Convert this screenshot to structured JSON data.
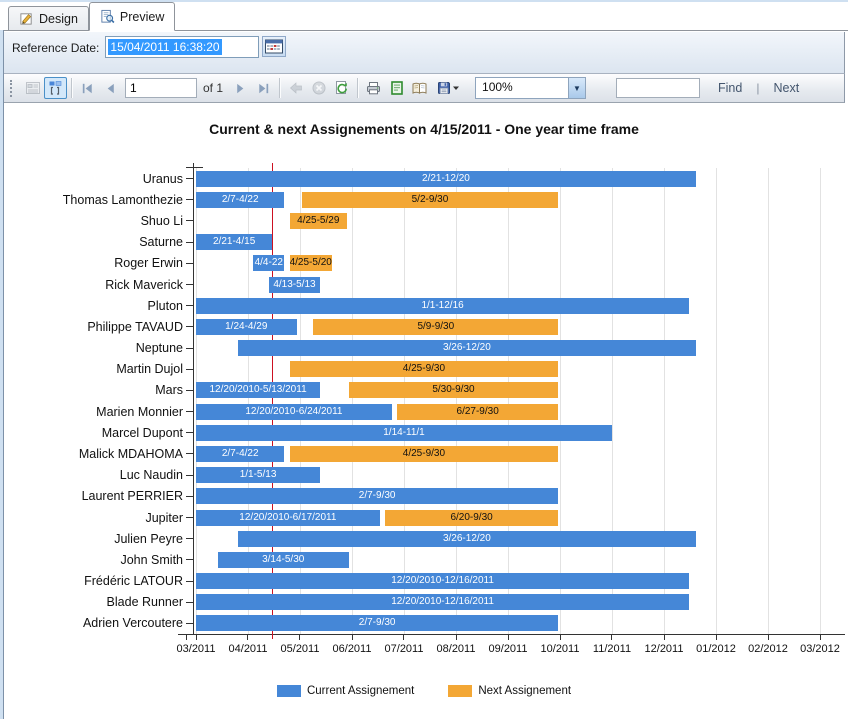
{
  "tabs": {
    "design": "Design",
    "preview": "Preview"
  },
  "reference_bar": {
    "label": "Reference Date:",
    "value": "15/04/2011 16:38:20"
  },
  "toolbar": {
    "page_value": "1",
    "of_label": "of 1",
    "zoom_value": "100%",
    "find_label": "Find",
    "separator": "|",
    "next_label": "Next"
  },
  "chart_data": {
    "type": "bar",
    "subtype": "gantt",
    "title": "Current & next Assignements on 4/15/2011 - One year time frame",
    "x_ticks": [
      "03/2011",
      "04/2011",
      "05/2011",
      "06/2011",
      "07/2011",
      "08/2011",
      "09/2011",
      "10/2011",
      "11/2011",
      "12/2011",
      "01/2012",
      "02/2012",
      "03/2012"
    ],
    "axis_start": "2011-03-01",
    "axis_end": "2012-03-01",
    "reference_line_date": "2011-04-15",
    "grid": true,
    "legend_position": "bottom",
    "legend": [
      {
        "label": "Current Assignement",
        "key": "current",
        "color": "#4587d7"
      },
      {
        "label": "Next Assignement",
        "key": "next",
        "color": "#f3a735"
      }
    ],
    "colors": {
      "current": "#4587d7",
      "next": "#f3a735",
      "reference_line": "#cc1122",
      "grid": "#e2e2e2",
      "current_text": "#ffffff",
      "next_text": "#111111"
    },
    "rows": [
      {
        "name": "Uranus",
        "bars": [
          {
            "type": "current",
            "start": "2011-02-21",
            "end": "2011-12-20",
            "label": "2/21-12/20"
          }
        ]
      },
      {
        "name": "Thomas Lamonthezie",
        "bars": [
          {
            "type": "current",
            "start": "2011-02-07",
            "end": "2011-04-22",
            "label": "2/7-4/22"
          },
          {
            "type": "next",
            "start": "2011-05-02",
            "end": "2011-09-30",
            "label": "5/2-9/30"
          }
        ]
      },
      {
        "name": "Shuo Li",
        "bars": [
          {
            "type": "next",
            "start": "2011-04-25",
            "end": "2011-05-29",
            "label": "4/25-5/29"
          }
        ]
      },
      {
        "name": "Saturne",
        "bars": [
          {
            "type": "current",
            "start": "2011-02-21",
            "end": "2011-04-15",
            "label": "2/21-4/15"
          }
        ]
      },
      {
        "name": "Roger Erwin",
        "bars": [
          {
            "type": "current",
            "start": "2011-04-04",
            "end": "2011-04-22",
            "label": "4/4-22"
          },
          {
            "type": "next",
            "start": "2011-04-25",
            "end": "2011-05-20",
            "label": "4/25-5/20"
          }
        ]
      },
      {
        "name": "Rick Maverick",
        "bars": [
          {
            "type": "current",
            "start": "2011-04-13",
            "end": "2011-05-13",
            "label": "4/13-5/13"
          }
        ]
      },
      {
        "name": "Pluton",
        "bars": [
          {
            "type": "current",
            "start": "2011-01-01",
            "end": "2011-12-16",
            "label": "1/1-12/16"
          }
        ]
      },
      {
        "name": "Philippe TAVAUD",
        "bars": [
          {
            "type": "current",
            "start": "2011-01-24",
            "end": "2011-04-29",
            "label": "1/24-4/29"
          },
          {
            "type": "next",
            "start": "2011-05-09",
            "end": "2011-09-30",
            "label": "5/9-9/30"
          }
        ]
      },
      {
        "name": "Neptune",
        "bars": [
          {
            "type": "current",
            "start": "2011-03-26",
            "end": "2011-12-20",
            "label": "3/26-12/20"
          }
        ]
      },
      {
        "name": "Martin Dujol",
        "bars": [
          {
            "type": "next",
            "start": "2011-04-25",
            "end": "2011-09-30",
            "label": "4/25-9/30"
          }
        ]
      },
      {
        "name": "Mars",
        "bars": [
          {
            "type": "current",
            "start": "2010-12-20",
            "end": "2011-05-13",
            "label": "12/20/2010-5/13/2011"
          },
          {
            "type": "next",
            "start": "2011-05-30",
            "end": "2011-09-30",
            "label": "5/30-9/30"
          }
        ]
      },
      {
        "name": "Marien Monnier",
        "bars": [
          {
            "type": "current",
            "start": "2010-12-20",
            "end": "2011-06-24",
            "label": "12/20/2010-6/24/2011"
          },
          {
            "type": "next",
            "start": "2011-06-27",
            "end": "2011-09-30",
            "label": "6/27-9/30"
          }
        ]
      },
      {
        "name": "Marcel Dupont",
        "bars": [
          {
            "type": "current",
            "start": "2011-01-14",
            "end": "2011-11-01",
            "label": "1/14-11/1"
          }
        ]
      },
      {
        "name": "Malick MDAHOMA",
        "bars": [
          {
            "type": "current",
            "start": "2011-02-07",
            "end": "2011-04-22",
            "label": "2/7-4/22"
          },
          {
            "type": "next",
            "start": "2011-04-25",
            "end": "2011-09-30",
            "label": "4/25-9/30"
          }
        ]
      },
      {
        "name": "Luc Naudin",
        "bars": [
          {
            "type": "current",
            "start": "2011-01-01",
            "end": "2011-05-13",
            "label": "1/1-5/13"
          }
        ]
      },
      {
        "name": "Laurent PERRIER",
        "bars": [
          {
            "type": "current",
            "start": "2011-02-07",
            "end": "2011-09-30",
            "label": "2/7-9/30"
          }
        ]
      },
      {
        "name": "Jupiter",
        "bars": [
          {
            "type": "current",
            "start": "2010-12-20",
            "end": "2011-06-17",
            "label": "12/20/2010-6/17/2011"
          },
          {
            "type": "next",
            "start": "2011-06-20",
            "end": "2011-09-30",
            "label": "6/20-9/30"
          }
        ]
      },
      {
        "name": "Julien Peyre",
        "bars": [
          {
            "type": "current",
            "start": "2011-03-26",
            "end": "2011-12-20",
            "label": "3/26-12/20"
          }
        ]
      },
      {
        "name": "John Smith",
        "bars": [
          {
            "type": "current",
            "start": "2011-03-14",
            "end": "2011-05-30",
            "label": "3/14-5/30"
          }
        ]
      },
      {
        "name": "Frédéric LATOUR",
        "bars": [
          {
            "type": "current",
            "start": "2010-12-20",
            "end": "2011-12-16",
            "label": "12/20/2010-12/16/2011"
          }
        ]
      },
      {
        "name": "Blade Runner",
        "bars": [
          {
            "type": "current",
            "start": "2010-12-20",
            "end": "2011-12-16",
            "label": "12/20/2010-12/16/2011"
          }
        ]
      },
      {
        "name": "Adrien Vercoutere",
        "bars": [
          {
            "type": "current",
            "start": "2011-02-07",
            "end": "2011-09-30",
            "label": "2/7-9/30"
          }
        ]
      }
    ]
  }
}
